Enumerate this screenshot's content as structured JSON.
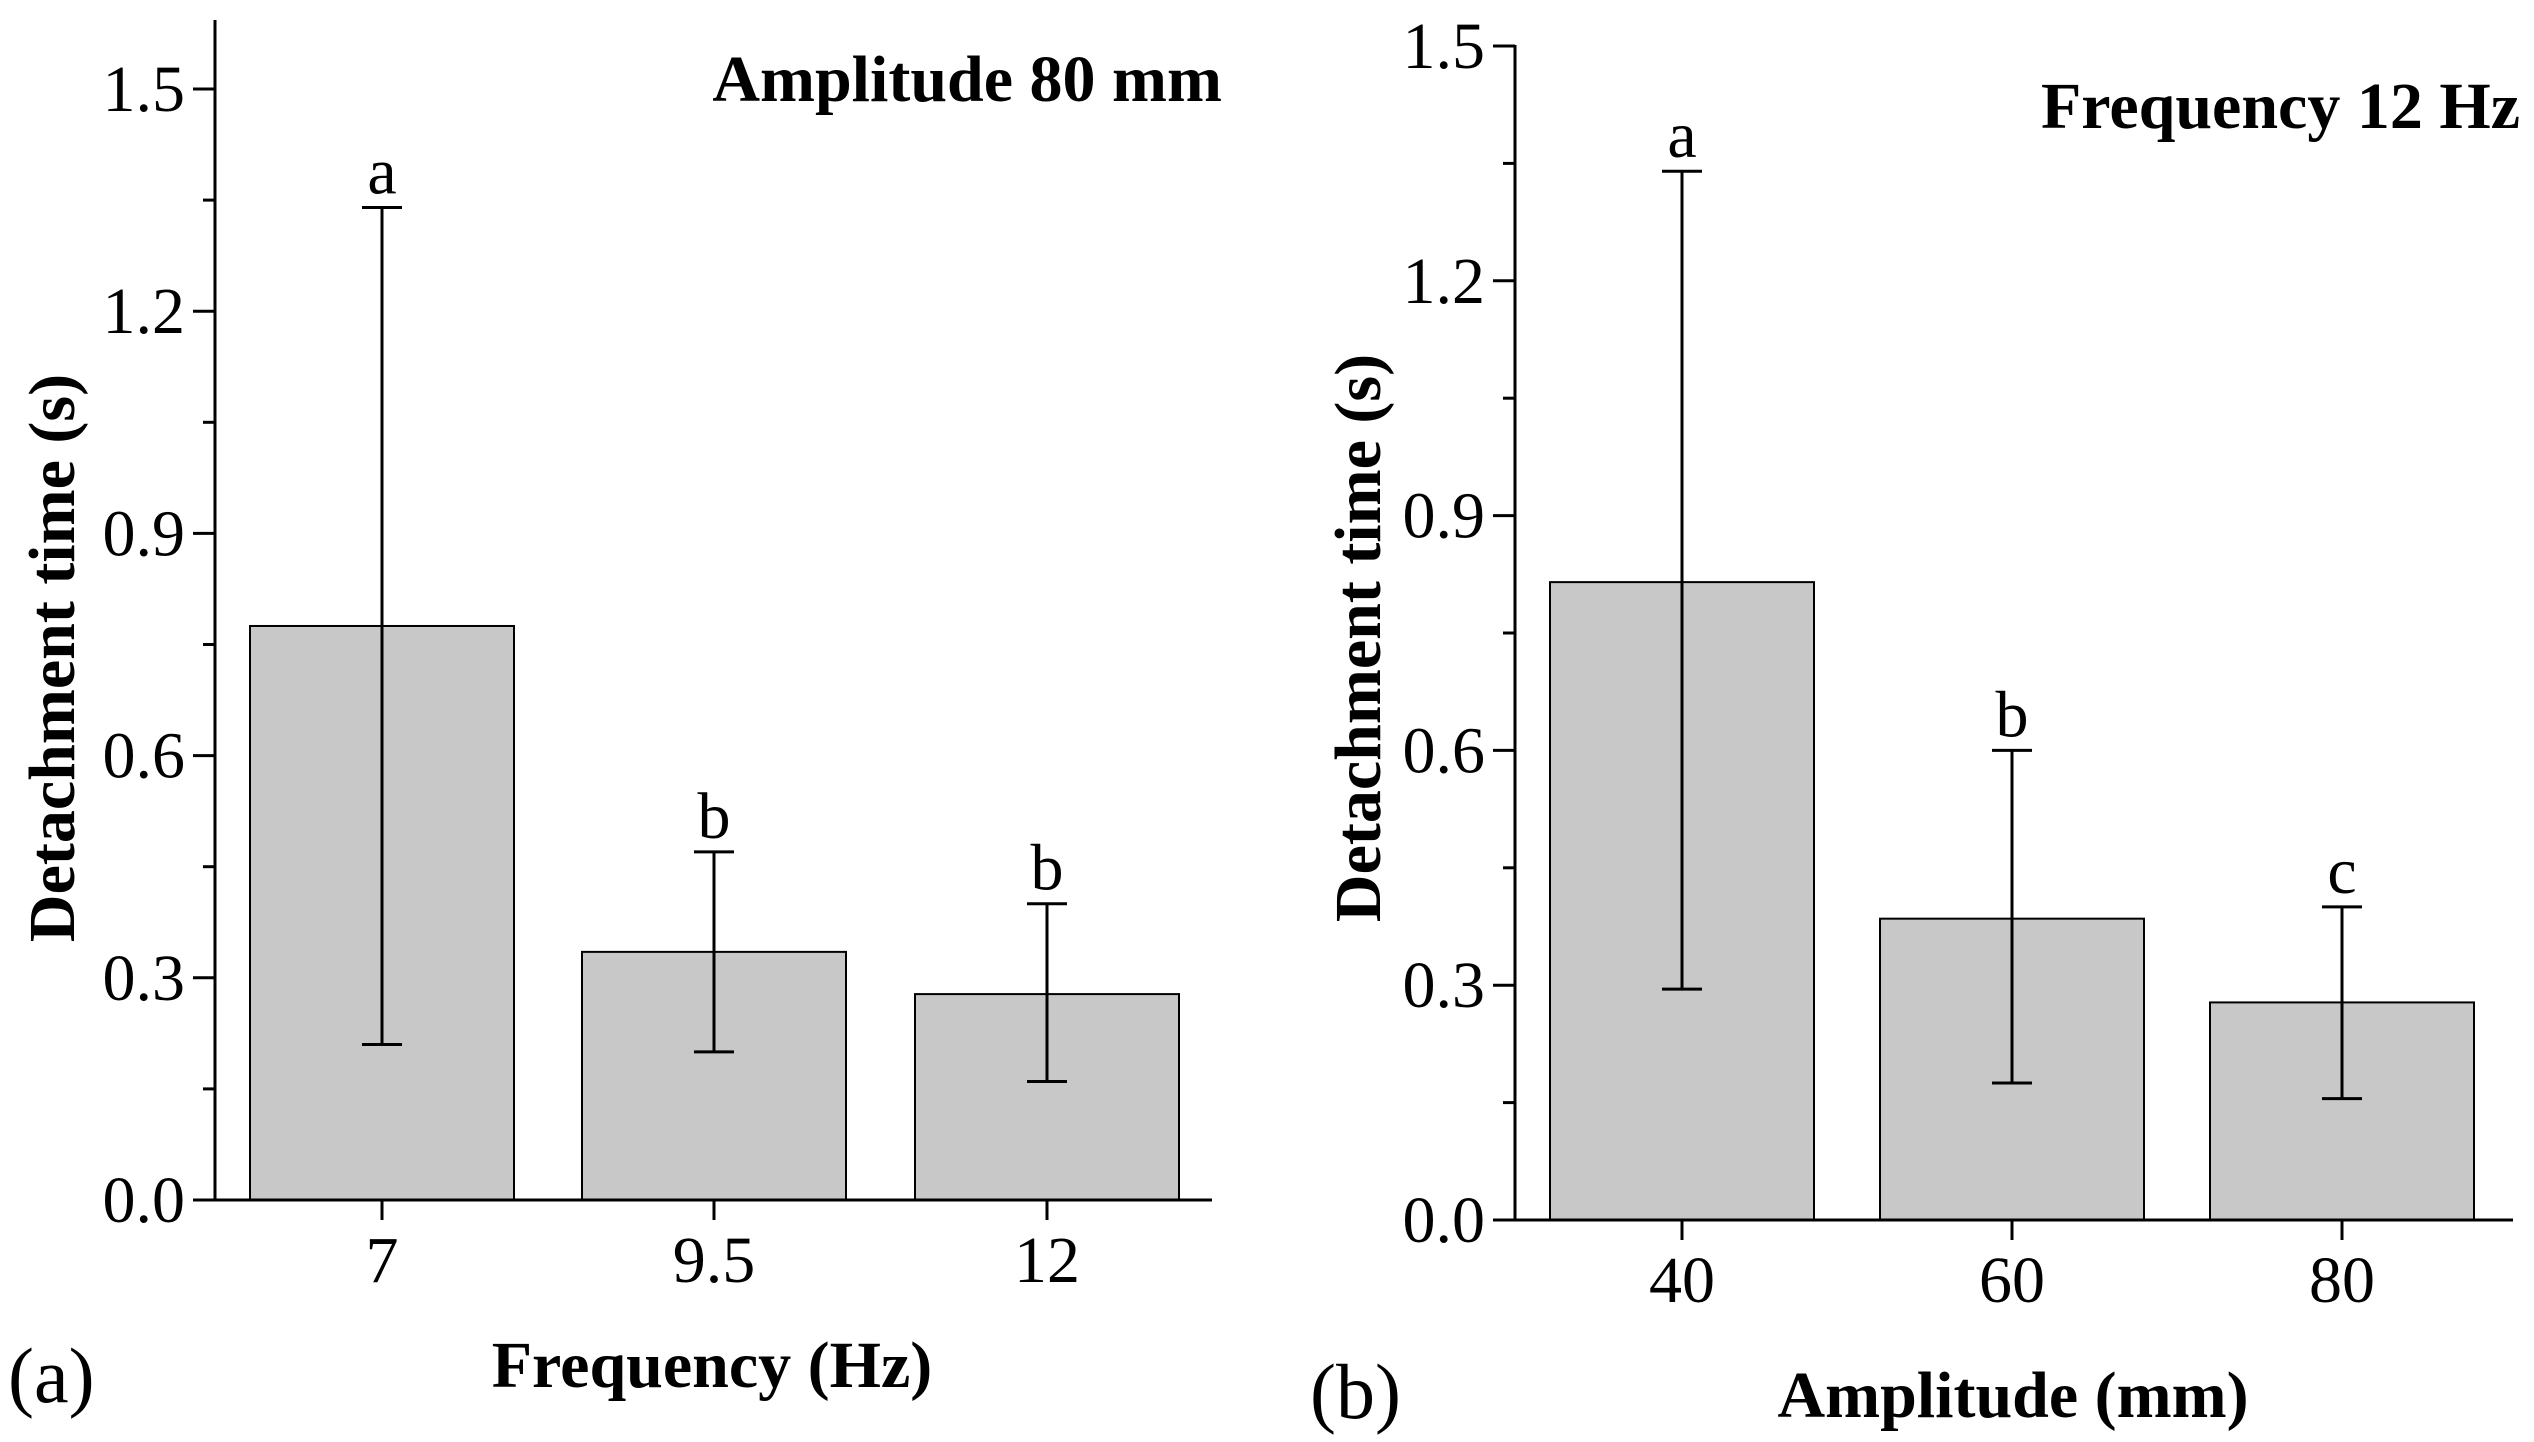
{
  "chart_data": [
    {
      "type": "bar",
      "panel_label": "(a)",
      "title": "Amplitude 80 mm",
      "xlabel": "Frequency (Hz)",
      "ylabel": "Detachment time (s)",
      "categories": [
        "7",
        "9.5",
        "12"
      ],
      "values": [
        0.775,
        0.335,
        0.278
      ],
      "error_low": [
        0.21,
        0.2,
        0.16
      ],
      "error_high": [
        1.34,
        0.47,
        0.4
      ],
      "significance": [
        "a",
        "b",
        "b"
      ],
      "ylim": [
        0,
        1.6
      ],
      "yticks": [
        0.0,
        0.3,
        0.6,
        0.9,
        1.2,
        1.5
      ],
      "ytick_labels": [
        "0.0",
        "0.3",
        "0.6",
        "0.9",
        "1.2",
        "1.5"
      ],
      "bar_color": "#c8c8c8"
    },
    {
      "type": "bar",
      "panel_label": "(b)",
      "title": "Frequency 12 Hz",
      "xlabel": "Amplitude (mm)",
      "ylabel": "Detachment time (s)",
      "categories": [
        "40",
        "60",
        "80"
      ],
      "values": [
        0.815,
        0.385,
        0.278
      ],
      "error_low": [
        0.295,
        0.175,
        0.155
      ],
      "error_high": [
        1.34,
        0.6,
        0.4
      ],
      "significance": [
        "a",
        "b",
        "c"
      ],
      "ylim": [
        0,
        1.5
      ],
      "yticks": [
        0.0,
        0.3,
        0.6,
        0.9,
        1.2,
        1.5
      ],
      "ytick_labels": [
        "0.0",
        "0.3",
        "0.6",
        "0.9",
        "1.2",
        "1.5"
      ],
      "bar_color": "#c8c8c8"
    }
  ]
}
